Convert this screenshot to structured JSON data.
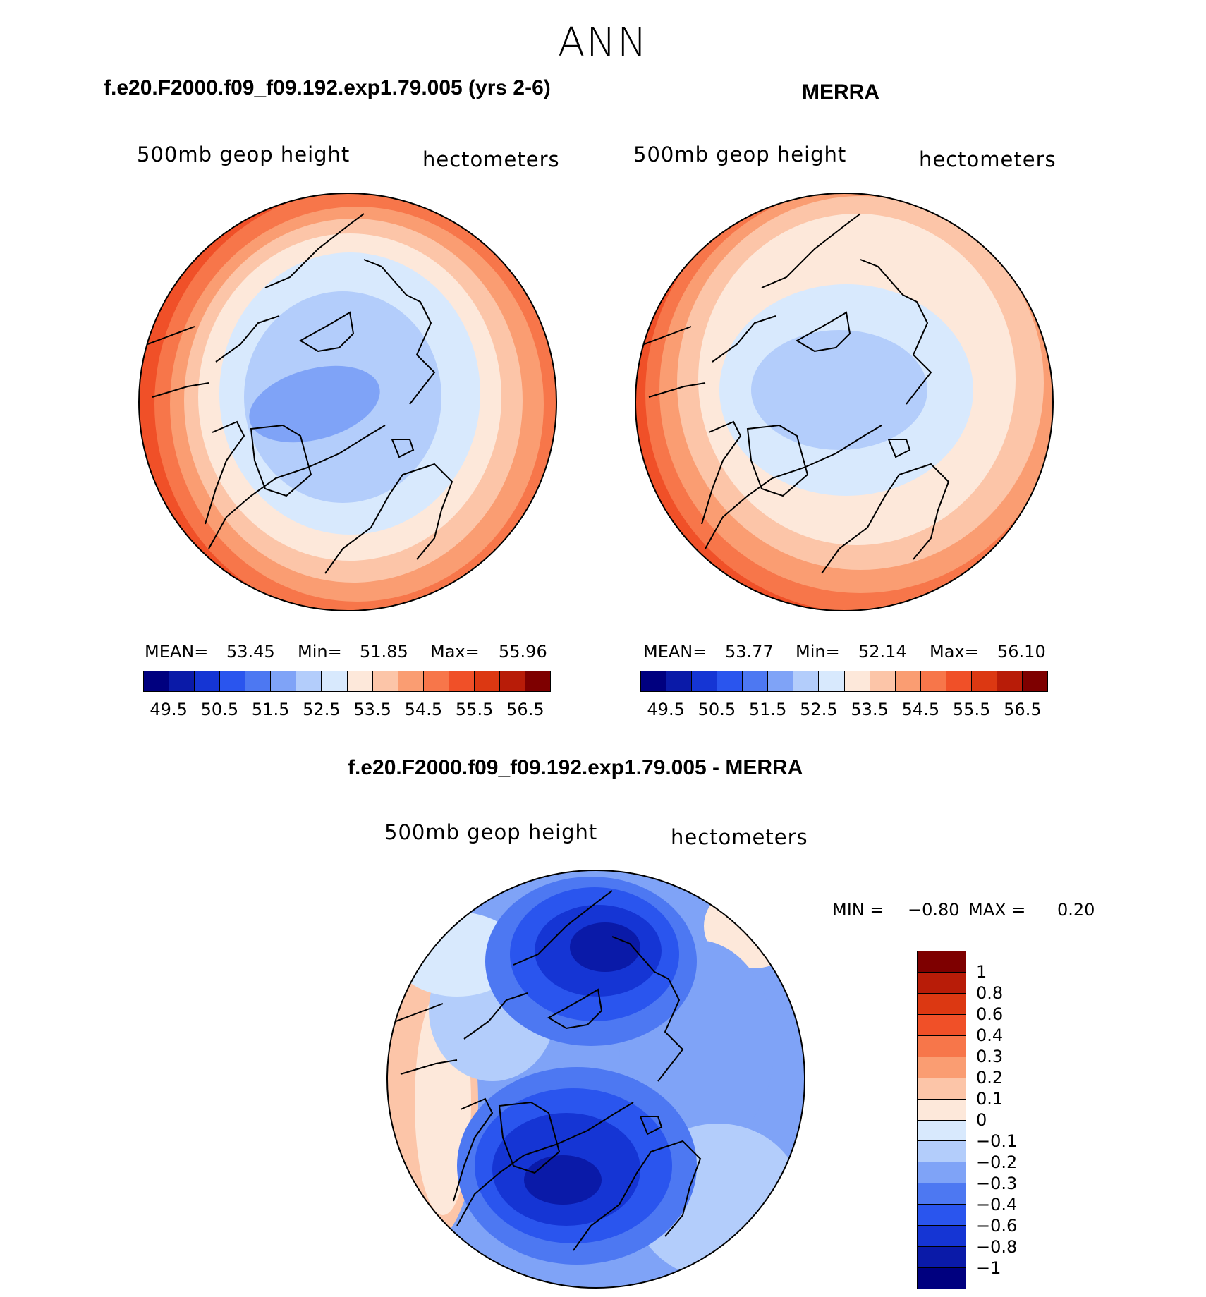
{
  "page": {
    "title": "ANN"
  },
  "panels": {
    "left": {
      "title": "f.e20.F2000.f09_f09.192.exp1.79.005 (yrs 2-6)",
      "variable": "500mb geop height",
      "units": "hectometers",
      "mean_label": "MEAN=",
      "mean": "53.45",
      "min_label": "Min=",
      "min": "51.85",
      "max_label": "Max=",
      "max": "55.96"
    },
    "right": {
      "title": "MERRA",
      "variable": "500mb geop height",
      "units": "hectometers",
      "mean_label": "MEAN=",
      "mean": "53.77",
      "min_label": "Min=",
      "min": "52.14",
      "max_label": "Max=",
      "max": "56.10"
    },
    "diff": {
      "title": "f.e20.F2000.f09_f09.192.exp1.79.005 - MERRA",
      "variable": "500mb geop height",
      "units": "hectometers",
      "min_label": "MIN =",
      "min": "−0.80",
      "max_label": "MAX =",
      "max": "0.20"
    }
  },
  "colorbar_abs": {
    "colors": [
      "#00007f",
      "#0a1aa8",
      "#1535d4",
      "#2a55ee",
      "#4d78f2",
      "#7fa3f7",
      "#b3cdfb",
      "#d8e9fd",
      "#fde8da",
      "#fcc5a8",
      "#fa9d72",
      "#f7764a",
      "#f05028",
      "#dc3812",
      "#b81c08",
      "#7e0000"
    ],
    "tick_labels": [
      "49.5",
      "50.5",
      "51.5",
      "52.5",
      "53.5",
      "54.5",
      "55.5",
      "56.5"
    ]
  },
  "colorbar_diff": {
    "colors": [
      "#7e0000",
      "#b81c08",
      "#dc3812",
      "#f05028",
      "#f7764a",
      "#fa9d72",
      "#fcc5a8",
      "#fde8da",
      "#d8e9fd",
      "#b3cdfb",
      "#7fa3f7",
      "#4d78f2",
      "#2a55ee",
      "#1535d4",
      "#0a1aa8",
      "#00007f"
    ],
    "tick_labels": [
      "1",
      "0.8",
      "0.6",
      "0.4",
      "0.3",
      "0.2",
      "0.1",
      "0",
      "−0.1",
      "−0.2",
      "−0.3",
      "−0.4",
      "−0.6",
      "−0.8",
      "−1"
    ]
  },
  "chart_data": [
    {
      "type": "heatmap",
      "projection": "polar stereographic (North Pole)",
      "title": "f.e20.F2000.f09_f09.192.exp1.79.005 (yrs 2-6)",
      "subtitle_left": "500mb geop height",
      "subtitle_right": "hectometers",
      "color_levels": [
        49.5,
        50,
        50.5,
        51,
        51.5,
        52,
        52.5,
        53,
        53.5,
        54,
        54.5,
        55,
        55.5,
        56,
        56.5
      ],
      "stats": {
        "mean": 53.45,
        "min": 51.85,
        "max": 55.96
      }
    },
    {
      "type": "heatmap",
      "projection": "polar stereographic (North Pole)",
      "title": "MERRA",
      "subtitle_left": "500mb geop height",
      "subtitle_right": "hectometers",
      "color_levels": [
        49.5,
        50,
        50.5,
        51,
        51.5,
        52,
        52.5,
        53,
        53.5,
        54,
        54.5,
        55,
        55.5,
        56,
        56.5
      ],
      "stats": {
        "mean": 53.77,
        "min": 52.14,
        "max": 56.1
      }
    },
    {
      "type": "heatmap",
      "projection": "polar stereographic (North Pole)",
      "title": "f.e20.F2000.f09_f09.192.exp1.79.005 - MERRA",
      "subtitle_left": "500mb geop height",
      "subtitle_right": "hectometers",
      "color_levels": [
        -1,
        -0.8,
        -0.6,
        -0.4,
        -0.3,
        -0.2,
        -0.1,
        0,
        0.1,
        0.2,
        0.3,
        0.4,
        0.6,
        0.8,
        1
      ],
      "stats": {
        "min": -0.8,
        "max": 0.2
      }
    }
  ]
}
